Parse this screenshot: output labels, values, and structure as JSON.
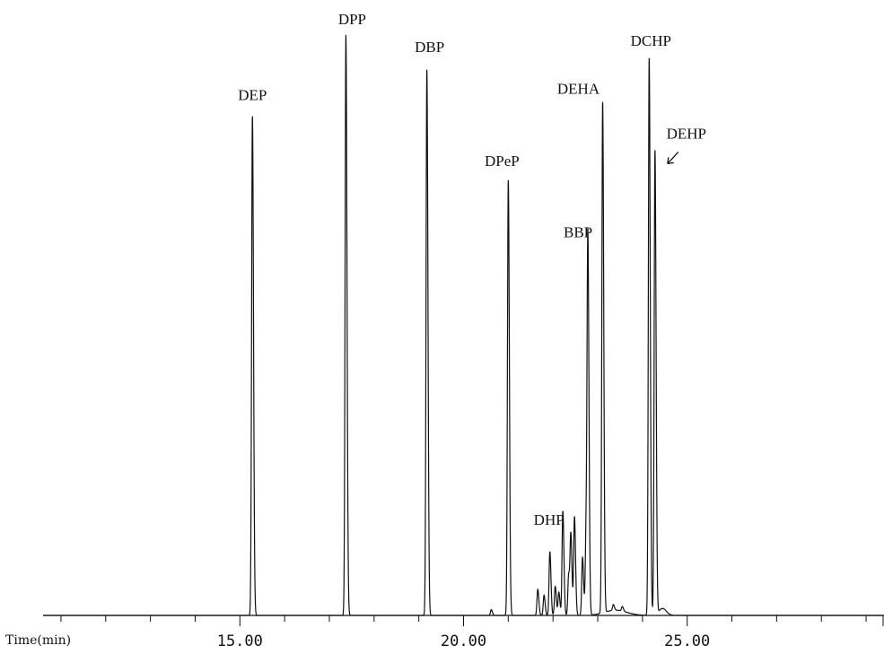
{
  "chart_data": {
    "type": "line",
    "title": "",
    "xlabel": "Time(min)",
    "ylabel": "",
    "xlim": [
      10.6,
      29.4
    ],
    "ylim": [
      0,
      100
    ],
    "x_tick_labels": [
      "15.00",
      "20.00",
      "25.00"
    ],
    "x_ticks_major": [
      15.0,
      20.0,
      25.0
    ],
    "grid": false,
    "legend": "none",
    "peaks": [
      {
        "name": "DEP",
        "x": 15.28,
        "height": 86
      },
      {
        "name": "DPP",
        "x": 17.37,
        "height": 100
      },
      {
        "name": "DBP",
        "x": 19.18,
        "height": 94
      },
      {
        "name": "",
        "x": 20.62,
        "height": 1
      },
      {
        "name": "DPeP",
        "x": 21.0,
        "height": 75
      },
      {
        "name": "",
        "x": 21.66,
        "height": 4.5
      },
      {
        "name": "",
        "x": 21.8,
        "height": 3.5
      },
      {
        "name": "DHP",
        "x": 21.93,
        "height": 11
      },
      {
        "name": "",
        "x": 22.05,
        "height": 5
      },
      {
        "name": "",
        "x": 22.13,
        "height": 4
      },
      {
        "name": "",
        "x": 22.22,
        "height": 18
      },
      {
        "name": "",
        "x": 22.35,
        "height": 7
      },
      {
        "name": "",
        "x": 22.4,
        "height": 13.5
      },
      {
        "name": "",
        "x": 22.48,
        "height": 17
      },
      {
        "name": "",
        "x": 22.66,
        "height": 10
      },
      {
        "name": "",
        "x": 22.74,
        "height": 14
      },
      {
        "name": "BBP",
        "x": 22.78,
        "height": 63
      },
      {
        "name": "",
        "x": 23.35,
        "height": 1
      },
      {
        "name": "",
        "x": 23.55,
        "height": 0.8
      },
      {
        "name": "DEHA",
        "x": 23.11,
        "height": 88
      },
      {
        "name": "DCHP",
        "x": 24.15,
        "height": 96
      },
      {
        "name": "DEHP",
        "x": 24.28,
        "height": 80
      }
    ],
    "labels": [
      {
        "text": "DEP",
        "x": 15.28
      },
      {
        "text": "DPP",
        "x": 17.37
      },
      {
        "text": "DBP",
        "x": 19.18
      },
      {
        "text": "DPeP",
        "x": 21.0
      },
      {
        "text": "DHP",
        "x": 21.93
      },
      {
        "text": "BBP",
        "x": 22.78
      },
      {
        "text": "DEHA",
        "x": 23.11
      },
      {
        "text": "DCHP",
        "x": 24.15
      },
      {
        "text": "DEHP",
        "x": 24.28
      }
    ],
    "annotations": [
      {
        "type": "arrow",
        "points_to": "DEHP"
      }
    ]
  }
}
